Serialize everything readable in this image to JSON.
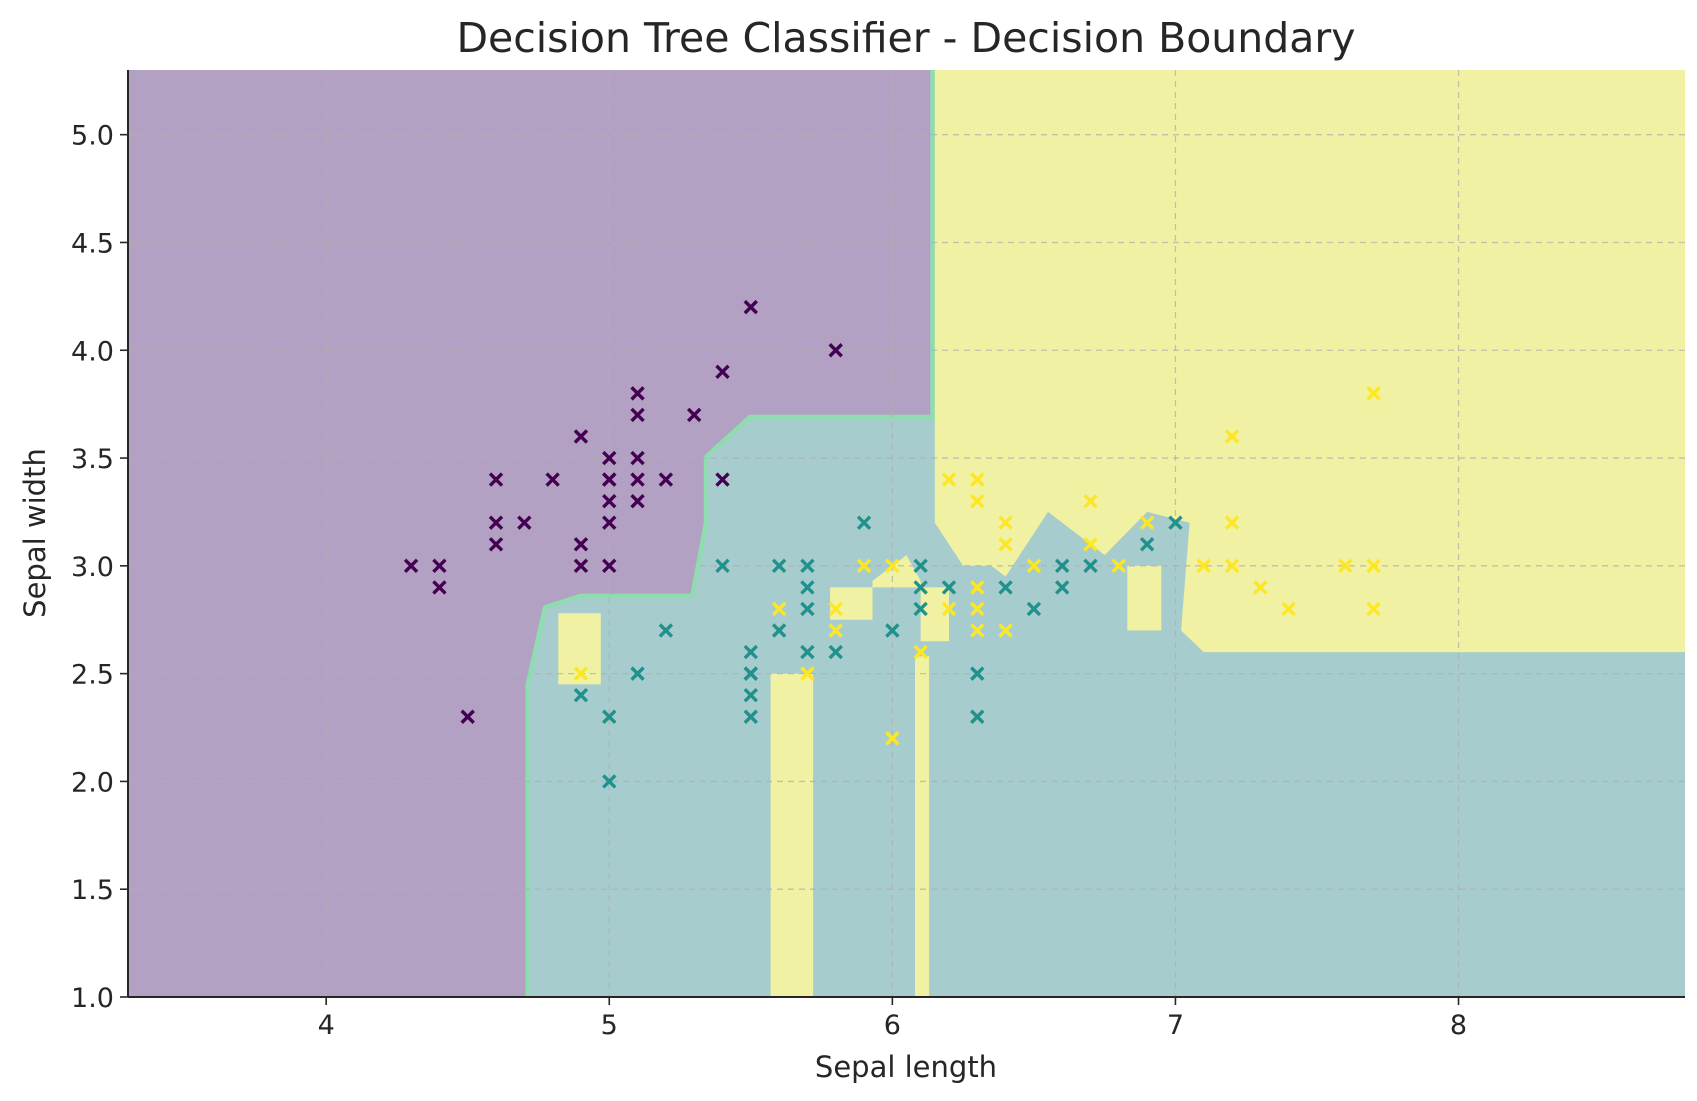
{
  "chart_data": {
    "type": "scatter",
    "title": "Decision Tree Classifier - Decision Boundary",
    "xlabel": "Sepal length",
    "ylabel": "Sepal width",
    "xlim": [
      3.3,
      8.8
    ],
    "ylim": [
      1.0,
      5.3
    ],
    "xticks": [
      4,
      5,
      6,
      7,
      8
    ],
    "yticks": [
      1.0,
      1.5,
      2.0,
      2.5,
      3.0,
      3.5,
      4.0,
      4.5,
      5.0
    ],
    "grid": true,
    "legend": "none",
    "marker": "x",
    "colors": {
      "class_0": "#440154",
      "class_1": "#21918c",
      "class_2": "#fde725",
      "region_0": "#b3a1c3",
      "region_1": "#a7ccce",
      "region_2": "#f0f1a3",
      "contour_band": "#8fdcb0"
    },
    "decision_regions": [
      {
        "class": 1,
        "polygon": [
          [
            4.72,
            1.0
          ],
          [
            8.8,
            1.0
          ],
          [
            8.8,
            2.6
          ],
          [
            7.1,
            2.6
          ],
          [
            7.02,
            2.7
          ],
          [
            7.05,
            3.2
          ],
          [
            6.9,
            3.25
          ],
          [
            6.75,
            3.05
          ],
          [
            6.55,
            3.25
          ],
          [
            6.45,
            3.05
          ],
          [
            6.4,
            2.95
          ],
          [
            6.35,
            3.0
          ],
          [
            6.25,
            3.0
          ],
          [
            6.15,
            3.2
          ],
          [
            6.15,
            3.68
          ],
          [
            5.5,
            3.68
          ],
          [
            5.35,
            3.5
          ],
          [
            5.35,
            3.2
          ],
          [
            5.3,
            2.85
          ],
          [
            4.9,
            2.85
          ],
          [
            4.78,
            2.8
          ],
          [
            4.72,
            2.45
          ]
        ]
      },
      {
        "class": 2,
        "polygon": [
          [
            6.15,
            3.68
          ],
          [
            6.15,
            5.3
          ],
          [
            8.8,
            5.3
          ],
          [
            8.8,
            2.6
          ],
          [
            7.1,
            2.6
          ],
          [
            7.02,
            2.7
          ],
          [
            7.05,
            3.2
          ],
          [
            6.9,
            3.25
          ],
          [
            6.75,
            3.05
          ],
          [
            6.55,
            3.25
          ],
          [
            6.45,
            3.05
          ],
          [
            6.4,
            2.95
          ],
          [
            6.35,
            3.0
          ],
          [
            6.25,
            3.0
          ],
          [
            6.15,
            3.2
          ]
        ]
      },
      {
        "class": 2,
        "polygon": [
          [
            4.82,
            2.45
          ],
          [
            4.97,
            2.45
          ],
          [
            4.97,
            2.78
          ],
          [
            4.82,
            2.78
          ]
        ]
      },
      {
        "class": 2,
        "polygon": [
          [
            5.57,
            1.0
          ],
          [
            5.72,
            1.0
          ],
          [
            5.72,
            2.5
          ],
          [
            5.57,
            2.5
          ]
        ]
      },
      {
        "class": 2,
        "polygon": [
          [
            6.08,
            1.0
          ],
          [
            6.13,
            1.0
          ],
          [
            6.13,
            2.58
          ],
          [
            6.08,
            2.58
          ]
        ]
      },
      {
        "class": 2,
        "polygon": [
          [
            5.78,
            2.75
          ],
          [
            5.93,
            2.75
          ],
          [
            5.93,
            2.93
          ],
          [
            6.05,
            3.05
          ],
          [
            6.1,
            2.93
          ],
          [
            6.1,
            2.65
          ],
          [
            6.2,
            2.65
          ],
          [
            6.2,
            2.9
          ],
          [
            6.0,
            2.9
          ],
          [
            5.78,
            2.9
          ]
        ]
      },
      {
        "class": 2,
        "polygon": [
          [
            6.83,
            2.7
          ],
          [
            6.95,
            2.7
          ],
          [
            6.95,
            3.0
          ],
          [
            6.83,
            3.0
          ]
        ]
      }
    ],
    "series": [
      {
        "class": 0,
        "x": [
          4.3,
          4.4,
          4.4,
          4.5,
          4.6,
          4.6,
          4.6,
          4.7,
          4.8,
          4.9,
          4.9,
          4.9,
          5.0,
          5.0,
          5.0,
          5.0,
          5.0,
          5.0,
          5.1,
          5.1,
          5.1,
          5.1,
          5.1,
          5.2,
          5.3,
          5.4,
          5.4,
          5.5,
          5.8
        ],
        "y": [
          3.0,
          3.0,
          2.9,
          2.3,
          3.4,
          3.2,
          3.1,
          3.2,
          3.4,
          3.6,
          3.1,
          3.0,
          3.5,
          3.4,
          3.3,
          3.2,
          3.0,
          3.4,
          3.8,
          3.7,
          3.5,
          3.4,
          3.3,
          3.4,
          3.7,
          3.9,
          3.4,
          4.2,
          4.0
        ]
      },
      {
        "class": 1,
        "x": [
          4.9,
          5.0,
          5.0,
          5.1,
          5.2,
          5.4,
          5.5,
          5.5,
          5.5,
          5.5,
          5.5,
          5.6,
          5.6,
          5.7,
          5.7,
          5.7,
          5.7,
          5.8,
          5.9,
          6.0,
          6.1,
          6.1,
          6.1,
          6.2,
          6.3,
          6.3,
          6.4,
          6.5,
          6.6,
          6.6,
          6.7,
          6.9,
          7.0
        ],
        "y": [
          2.4,
          2.3,
          2.0,
          2.5,
          2.7,
          3.0,
          2.6,
          2.5,
          2.4,
          2.3,
          2.5,
          3.0,
          2.7,
          3.0,
          2.9,
          2.8,
          2.6,
          2.6,
          3.2,
          2.7,
          3.0,
          2.9,
          2.8,
          2.9,
          2.5,
          2.3,
          2.9,
          2.8,
          3.0,
          2.9,
          3.0,
          3.1,
          3.2
        ]
      },
      {
        "class": 2,
        "x": [
          4.9,
          5.6,
          5.7,
          5.8,
          5.8,
          5.9,
          6.0,
          6.0,
          6.1,
          6.2,
          6.2,
          6.3,
          6.3,
          6.3,
          6.3,
          6.3,
          6.4,
          6.4,
          6.4,
          6.5,
          6.7,
          6.7,
          6.8,
          6.9,
          7.1,
          7.2,
          7.2,
          7.2,
          7.3,
          7.4,
          7.6,
          7.7,
          7.7,
          7.7
        ],
        "y": [
          2.5,
          2.8,
          2.5,
          2.8,
          2.7,
          3.0,
          3.0,
          2.2,
          2.6,
          3.4,
          2.8,
          3.4,
          3.3,
          2.9,
          2.8,
          2.7,
          3.2,
          3.1,
          2.7,
          3.0,
          3.3,
          3.1,
          3.0,
          3.2,
          3.0,
          3.6,
          3.2,
          3.0,
          2.9,
          2.8,
          3.0,
          3.8,
          3.0,
          2.8
        ]
      }
    ]
  }
}
